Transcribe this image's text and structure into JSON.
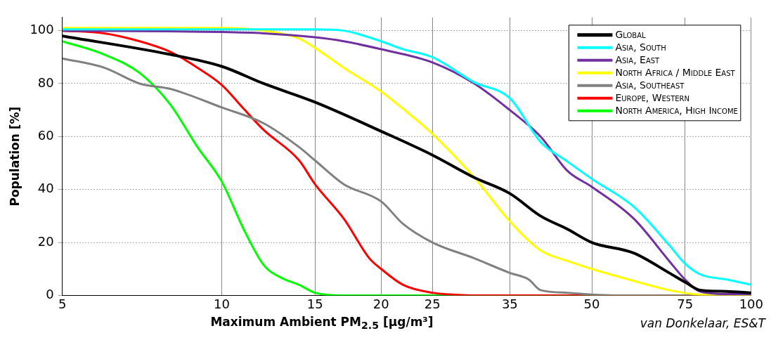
{
  "chart_data": {
    "type": "line",
    "xlabel": "Maximum Ambient PM$_{2.5}$ [µg/m³]",
    "ylabel": "Population [%]",
    "log": "x",
    "grid": true,
    "legend": "top right",
    "marker": "none",
    "line_style": "solid",
    "xlim": [
      5,
      100
    ],
    "xticks": [
      5,
      10,
      15,
      20,
      25,
      35,
      50,
      75,
      100
    ],
    "ylim": [
      0,
      105
    ],
    "yticks": [
      0,
      20,
      40,
      60,
      80,
      100
    ],
    "annotations": [
      "van Donkelaar, ES&T"
    ],
    "series": [
      {
        "name": "Global",
        "color": "#000000",
        "x": [
          5,
          8,
          10,
          12,
          15,
          20,
          25,
          30,
          35,
          40,
          45,
          50,
          60,
          70,
          75,
          80,
          90,
          100
        ],
        "values": [
          98,
          91,
          86.5,
          80,
          73,
          62,
          53,
          44.5,
          38.5,
          30,
          25,
          20,
          16,
          8.5,
          5,
          2,
          1.5,
          1
        ]
      },
      {
        "name": "Asia, South",
        "color": "#00ffff",
        "x": [
          5,
          10,
          15,
          17,
          20,
          22,
          25,
          30,
          35,
          40,
          45,
          50,
          60,
          70,
          75,
          80,
          90,
          100
        ],
        "values": [
          100.5,
          100.5,
          100.5,
          100,
          96,
          93,
          90,
          80.5,
          74.5,
          58,
          50.5,
          44,
          33.5,
          19,
          12,
          8,
          6,
          4
        ]
      },
      {
        "name": "Asia, East",
        "color": "#7030a0",
        "x": [
          5,
          10,
          12,
          15,
          17,
          20,
          25,
          30,
          35,
          40,
          45,
          50,
          60,
          70,
          75,
          80,
          90,
          100
        ],
        "values": [
          100,
          99.5,
          99,
          97.5,
          96,
          93,
          88,
          80,
          70,
          60,
          47,
          41,
          29,
          13,
          6,
          1.5,
          0.5,
          0.5
        ]
      },
      {
        "name": "North Africa / Middle East",
        "color": "#ffff00",
        "x": [
          5,
          10,
          12,
          14,
          15,
          17,
          20,
          22,
          25,
          30,
          35,
          40,
          45,
          50,
          60,
          70,
          80,
          100
        ],
        "values": [
          101,
          101,
          100,
          97,
          93.5,
          86,
          77,
          70.5,
          61,
          44.5,
          28,
          17,
          13,
          10,
          5.5,
          2,
          0.3,
          0
        ]
      },
      {
        "name": "Asia, Southeast",
        "color": "#808080",
        "x": [
          5,
          6,
          7,
          8,
          10,
          12,
          14,
          15,
          17,
          20,
          22,
          25,
          30,
          35,
          38,
          40,
          45,
          50,
          55,
          100
        ],
        "values": [
          89.5,
          86,
          80,
          78,
          71,
          65,
          56,
          51,
          42,
          35.5,
          27,
          20,
          14,
          8.5,
          6,
          2,
          1,
          0.3,
          0,
          0
        ]
      },
      {
        "name": "Europe, Western",
        "color": "#ff0000",
        "x": [
          5,
          6,
          7,
          8,
          9,
          10,
          11,
          12,
          14,
          15,
          17,
          19,
          20,
          22,
          25,
          28,
          30,
          100
        ],
        "values": [
          100,
          99,
          96,
          92,
          86,
          79.5,
          70.5,
          62.5,
          51,
          42,
          29,
          14,
          10,
          4,
          1,
          0.2,
          0,
          0
        ]
      },
      {
        "name": "North America, High Income",
        "color": "#00ff00",
        "x": [
          5,
          6,
          7,
          8,
          9,
          10,
          11,
          12,
          13,
          14,
          15,
          17,
          20,
          100
        ],
        "values": [
          96,
          91,
          84,
          72,
          56,
          43,
          25,
          11.5,
          6.5,
          4,
          1,
          0,
          0,
          0
        ]
      }
    ]
  }
}
